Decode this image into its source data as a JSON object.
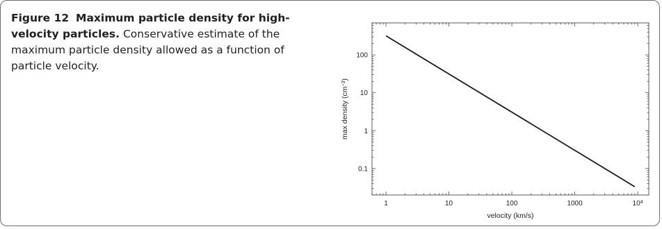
{
  "figure": {
    "label": "Figure 12",
    "title": "Maximum particle density for high-velocity particles.",
    "caption": "Conservative estimate of the maximum particle density allowed as a function of particle velocity."
  },
  "chart_data": {
    "type": "line",
    "xlabel": "velocity (km/s)",
    "ylabel_prefix": "max density (cm",
    "ylabel_sup": "−3",
    "ylabel_suffix": ")",
    "x_scale": "log",
    "y_scale": "log",
    "xlim": [
      0.6,
      15000
    ],
    "ylim": [
      0.02,
      700
    ],
    "x_ticks": [
      {
        "value": 1,
        "label": "1"
      },
      {
        "value": 10,
        "label": "10"
      },
      {
        "value": 100,
        "label": "100"
      },
      {
        "value": 1000,
        "label": "1000"
      },
      {
        "value": 10000,
        "label": "10",
        "sup": "4"
      }
    ],
    "y_ticks": [
      {
        "value": 0.1,
        "label": "0.1"
      },
      {
        "value": 1,
        "label": "1"
      },
      {
        "value": 10,
        "label": "10"
      },
      {
        "value": 100,
        "label": "100"
      }
    ],
    "series": [
      {
        "x": [
          1,
          9000
        ],
        "y": [
          320,
          0.033
        ],
        "color": "#1a1a1a"
      }
    ],
    "grid": false,
    "legend": "none"
  }
}
